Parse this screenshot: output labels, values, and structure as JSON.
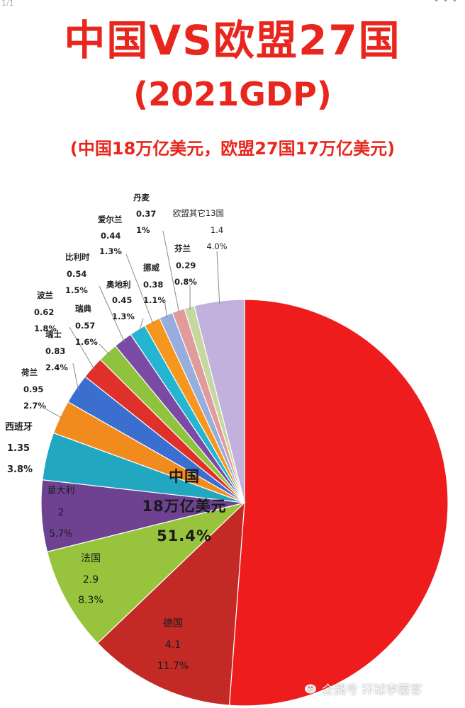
{
  "header": {
    "page_indicator": "1/1",
    "title": "中国VS欧盟27国",
    "subtitle": "(2021GDP)",
    "note": "(中国18万亿美元，欧盟27国17万亿美元)"
  },
  "watermark": "企鹅号 环球李覆客",
  "chart_data": {
    "type": "pie",
    "title": "中国VS欧盟27国",
    "subtitle": "(2021GDP)",
    "slices": [
      {
        "label": "中国",
        "value_text": "18万亿美元",
        "value": 18,
        "pct": 51.4,
        "pct_text": "51.4%",
        "color": "#ee1c1c"
      },
      {
        "label": "德国",
        "value_text": "4.1",
        "value": 4.1,
        "pct": 11.7,
        "pct_text": "11.7%",
        "color": "#c42a25"
      },
      {
        "label": "法国",
        "value_text": "2.9",
        "value": 2.9,
        "pct": 8.3,
        "pct_text": "8.3%",
        "color": "#97c43c"
      },
      {
        "label": "意大利",
        "value_text": "2",
        "value": 2,
        "pct": 5.7,
        "pct_text": "5.7%",
        "color": "#6f4291"
      },
      {
        "label": "西班牙",
        "value_text": "1.35",
        "value": 1.35,
        "pct": 3.8,
        "pct_text": "3.8%",
        "color": "#22a7c0"
      },
      {
        "label": "荷兰",
        "value_text": "0.95",
        "value": 0.95,
        "pct": 2.7,
        "pct_text": "2.7%",
        "color": "#f28b1e"
      },
      {
        "label": "瑞士",
        "value_text": "0.83",
        "value": 0.83,
        "pct": 2.4,
        "pct_text": "2.4%",
        "color": "#3a6fd0"
      },
      {
        "label": "波兰",
        "value_text": "0.62",
        "value": 0.62,
        "pct": 1.8,
        "pct_text": "1.8%",
        "color": "#e0302a"
      },
      {
        "label": "瑞典",
        "value_text": "0.57",
        "value": 0.57,
        "pct": 1.6,
        "pct_text": "1.6%",
        "color": "#8fc33e"
      },
      {
        "label": "比利时",
        "value_text": "0.54",
        "value": 0.54,
        "pct": 1.5,
        "pct_text": "1.5%",
        "color": "#7b4aa5"
      },
      {
        "label": "奥地利",
        "value_text": "0.45",
        "value": 0.45,
        "pct": 1.3,
        "pct_text": "1.3%",
        "color": "#23b5d2"
      },
      {
        "label": "爱尔兰",
        "value_text": "0.44",
        "value": 0.44,
        "pct": 1.3,
        "pct_text": "1.3%",
        "color": "#f5961f"
      },
      {
        "label": "挪威",
        "value_text": "0.38",
        "value": 0.38,
        "pct": 1.1,
        "pct_text": "1.1%",
        "color": "#96aede"
      },
      {
        "label": "丹麦",
        "value_text": "0.37",
        "value": 0.37,
        "pct": 1.0,
        "pct_text": "1%",
        "color": "#e29b9b"
      },
      {
        "label": "芬兰",
        "value_text": "0.29",
        "value": 0.29,
        "pct": 0.8,
        "pct_text": "0.8%",
        "color": "#c5d8a0"
      },
      {
        "label": "欧盟其它13国",
        "value_text": "1.4",
        "value": 1.4,
        "pct": 4.0,
        "pct_text": "4.0%",
        "color": "#c2b1dc"
      }
    ]
  }
}
